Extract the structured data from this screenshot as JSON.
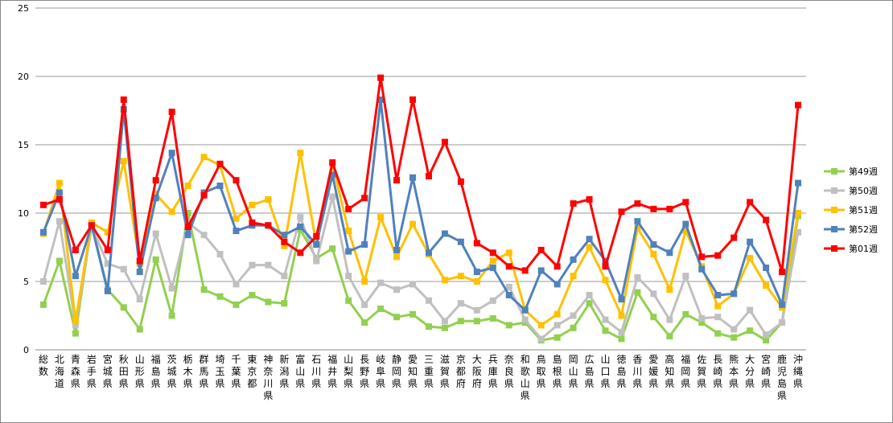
{
  "chart_data": {
    "type": "line",
    "title": "",
    "xlabel": "",
    "ylabel": "",
    "ylim": [
      0,
      25
    ],
    "yticks": [
      0,
      5,
      10,
      15,
      20,
      25
    ],
    "grid": "horizontal",
    "legend_position": "right",
    "categories": [
      "総数",
      "北海道",
      "青森県",
      "岩手県",
      "宮城県",
      "秋田県",
      "山形県",
      "福島県",
      "茨城県",
      "栃木県",
      "群馬県",
      "埼玉県",
      "千葉県",
      "東京都",
      "神奈川県",
      "新潟県",
      "富山県",
      "石川県",
      "福井県",
      "山梨県",
      "長野県",
      "岐阜県",
      "静岡県",
      "愛知県",
      "三重県",
      "滋賀県",
      "京都府",
      "大阪府",
      "兵庫県",
      "奈良県",
      "和歌山県",
      "鳥取県",
      "島根県",
      "岡山県",
      "広島県",
      "山口県",
      "徳島県",
      "香川県",
      "愛媛県",
      "高知県",
      "福岡県",
      "佐賀県",
      "長崎県",
      "熊本県",
      "大分県",
      "宮崎県",
      "鹿児島県",
      "沖縄県"
    ],
    "series": [
      {
        "name": "第49週",
        "color": "#92D050",
        "values": [
          3.3,
          6.5,
          1.2,
          9.2,
          4.4,
          3.1,
          1.5,
          6.6,
          2.5,
          10.0,
          4.4,
          3.9,
          3.3,
          4.0,
          3.5,
          3.4,
          8.8,
          6.7,
          7.4,
          3.6,
          2.0,
          3.0,
          2.4,
          2.6,
          1.7,
          1.6,
          2.1,
          2.1,
          2.3,
          1.8,
          2.0,
          0.7,
          0.9,
          1.6,
          3.4,
          1.4,
          0.8,
          4.2,
          2.4,
          1.0,
          2.6,
          2.0,
          1.2,
          0.9,
          1.4,
          0.7,
          2.0,
          9.8
        ]
      },
      {
        "name": "第50週",
        "color": "#C0C0C0",
        "values": [
          5.0,
          9.4,
          1.8,
          9.0,
          6.3,
          5.9,
          3.7,
          8.5,
          4.5,
          9.3,
          8.4,
          7.0,
          4.8,
          6.2,
          6.2,
          5.4,
          9.7,
          6.5,
          11.2,
          5.4,
          3.3,
          4.9,
          4.4,
          4.8,
          3.6,
          2.1,
          3.4,
          2.9,
          3.6,
          4.6,
          2.2,
          0.8,
          1.8,
          2.5,
          4.0,
          2.2,
          1.3,
          5.3,
          4.1,
          2.2,
          5.4,
          2.3,
          2.4,
          1.5,
          2.9,
          1.1,
          2.0,
          8.6
        ]
      },
      {
        "name": "第51週",
        "color": "#FFC000",
        "values": [
          8.5,
          12.2,
          2.1,
          9.3,
          8.6,
          13.8,
          6.3,
          11.4,
          10.1,
          12.0,
          14.1,
          13.5,
          9.6,
          10.6,
          11.0,
          7.6,
          14.4,
          7.7,
          13.6,
          8.7,
          5.0,
          9.7,
          6.8,
          9.2,
          7.0,
          5.1,
          5.4,
          5.0,
          6.5,
          7.1,
          2.9,
          1.8,
          2.6,
          5.4,
          7.5,
          5.1,
          2.5,
          8.9,
          7.0,
          4.4,
          8.7,
          6.1,
          3.2,
          4.1,
          6.7,
          4.7,
          3.1,
          10.0
        ]
      },
      {
        "name": "第52週",
        "color": "#4F81BD",
        "values": [
          8.6,
          11.5,
          5.4,
          9.1,
          4.3,
          17.6,
          5.7,
          11.1,
          14.4,
          8.4,
          11.5,
          12.0,
          8.7,
          9.1,
          9.1,
          8.4,
          9.0,
          7.7,
          12.8,
          7.2,
          7.7,
          18.3,
          7.3,
          12.6,
          7.1,
          8.5,
          7.9,
          5.7,
          6.0,
          4.0,
          2.9,
          5.8,
          4.8,
          6.6,
          8.1,
          6.5,
          3.7,
          9.4,
          7.7,
          7.1,
          9.2,
          5.9,
          4.0,
          4.1,
          7.9,
          6.0,
          3.3,
          12.2
        ]
      },
      {
        "name": "第01週",
        "color": "#FF0000",
        "values": [
          10.6,
          11.0,
          7.3,
          9.1,
          7.3,
          18.3,
          6.5,
          12.4,
          17.4,
          9.0,
          11.3,
          13.6,
          12.4,
          9.3,
          9.1,
          7.9,
          7.1,
          8.3,
          13.7,
          10.3,
          11.1,
          19.9,
          12.4,
          18.3,
          12.7,
          15.2,
          12.3,
          7.8,
          7.1,
          6.1,
          5.8,
          7.3,
          6.1,
          10.7,
          11.0,
          6.1,
          10.1,
          10.7,
          10.3,
          10.3,
          10.8,
          6.8,
          6.9,
          8.2,
          10.8,
          9.5,
          5.7,
          17.9
        ]
      }
    ]
  }
}
